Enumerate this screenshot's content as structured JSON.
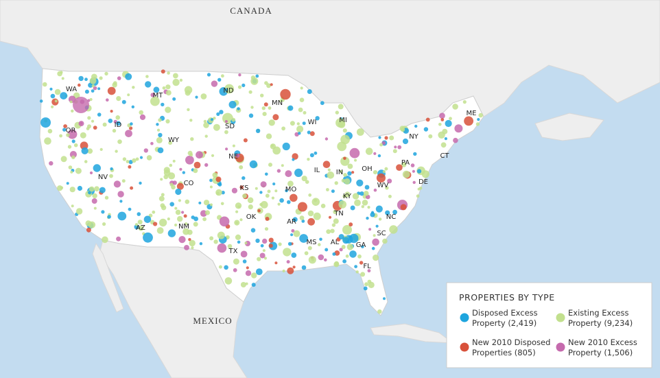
{
  "map_labels": {
    "countries": [
      "CANADA",
      "MEXICO"
    ],
    "states": [
      "WA",
      "MT",
      "ND",
      "MN",
      "WI",
      "MI",
      "OR",
      "ID",
      "WY",
      "SD",
      "NE",
      "NV",
      "CO",
      "KS",
      "MO",
      "IL",
      "IN",
      "OH",
      "PA",
      "NY",
      "ME",
      "WV",
      "KY",
      "TN",
      "NC",
      "SC",
      "GA",
      "AL",
      "MS",
      "AR",
      "OK",
      "TX",
      "NM",
      "AZ",
      "FL",
      "DE",
      "CT"
    ]
  },
  "legend": {
    "title": "PROPERTIES BY TYPE",
    "items": [
      {
        "lines": [
          "Disposed Excess",
          "Property (2,419)"
        ],
        "color": "#1ea5de"
      },
      {
        "lines": [
          "Existing Excess",
          "Property (9,234)"
        ],
        "color": "#c2e08e"
      },
      {
        "lines": [
          "New 2010 Disposed",
          "Properties (805)"
        ],
        "color": "#d8513a"
      },
      {
        "lines": [
          "New 2010 Excess",
          "Property (1,506)"
        ],
        "color": "#c56aad"
      }
    ]
  }
}
